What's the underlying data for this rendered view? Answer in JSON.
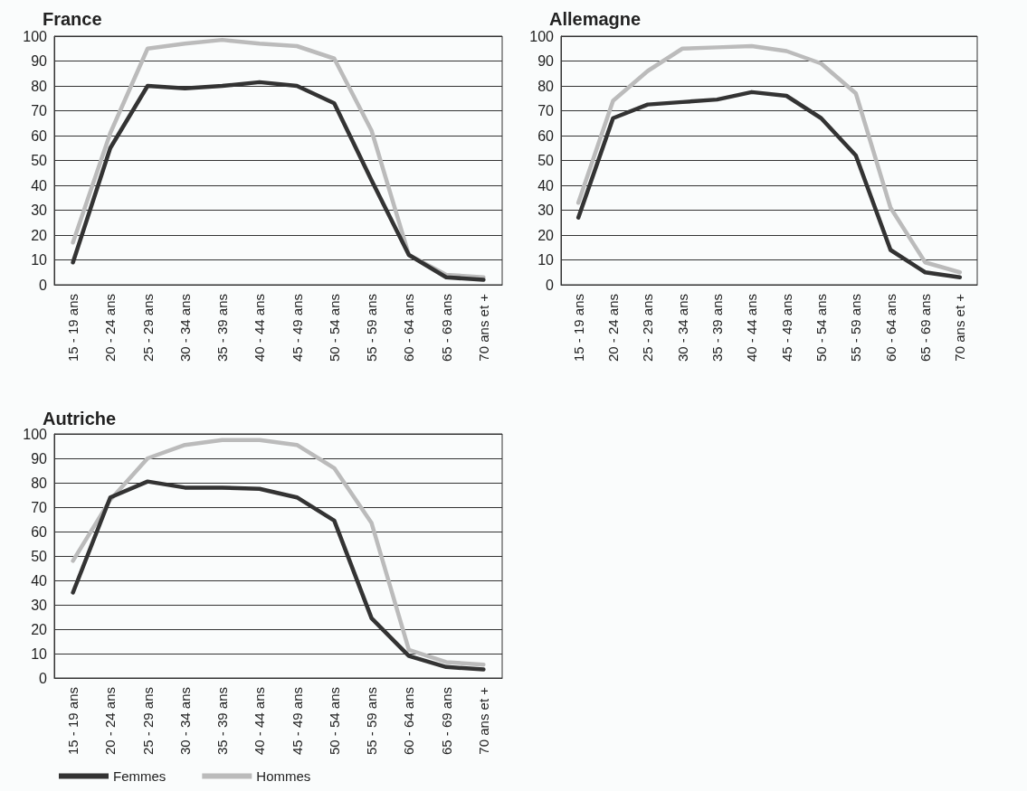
{
  "chart_data": [
    {
      "type": "line",
      "title": "France",
      "categories": [
        "15 - 19 ans",
        "20 - 24 ans",
        "25 - 29 ans",
        "30 - 34 ans",
        "35 - 39 ans",
        "40 - 44 ans",
        "45 - 49 ans",
        "50 - 54 ans",
        "55 - 59 ans",
        "60 - 64 ans",
        "65 - 69 ans",
        "70 ans et +"
      ],
      "ylim": [
        0,
        100
      ],
      "yticks": [
        0,
        10,
        20,
        30,
        40,
        50,
        60,
        70,
        80,
        90,
        100
      ],
      "grid": "y",
      "legend": false,
      "marker": "none",
      "series": [
        {
          "color": "#333333",
          "values": [
            9,
            55,
            80,
            79,
            80,
            81.5,
            80,
            73,
            42,
            12,
            3,
            2
          ]
        },
        {
          "color": "#bbbbbb",
          "values": [
            17,
            61,
            95,
            97,
            98.5,
            97,
            96,
            91,
            62,
            12,
            4,
            3
          ]
        }
      ]
    },
    {
      "type": "line",
      "title": "Allemagne",
      "categories": [
        "15 - 19 ans",
        "20 - 24 ans",
        "25 - 29 ans",
        "30 - 34 ans",
        "35 - 39 ans",
        "40 - 44 ans",
        "45 - 49 ans",
        "50 - 54 ans",
        "55 - 59 ans",
        "60 - 64 ans",
        "65 - 69 ans",
        "70 ans et +"
      ],
      "ylim": [
        0,
        100
      ],
      "yticks": [
        0,
        10,
        20,
        30,
        40,
        50,
        60,
        70,
        80,
        90,
        100
      ],
      "grid": "y",
      "legend": false,
      "marker": "none",
      "series": [
        {
          "color": "#333333",
          "values": [
            27,
            67,
            72.5,
            73.5,
            74.5,
            77.5,
            76,
            67,
            52,
            14,
            5,
            3
          ]
        },
        {
          "color": "#bbbbbb",
          "values": [
            33,
            74,
            86,
            95,
            95.5,
            96,
            94,
            89,
            77,
            31,
            9,
            5
          ]
        }
      ]
    },
    {
      "type": "line",
      "title": "Autriche",
      "categories": [
        "15 - 19 ans",
        "20 - 24 ans",
        "25 - 29 ans",
        "30 - 34 ans",
        "35 - 39 ans",
        "40 - 44 ans",
        "45 - 49 ans",
        "50 - 54 ans",
        "55 - 59 ans",
        "60 - 64 ans",
        "65 - 69 ans",
        "70 ans et +"
      ],
      "ylim": [
        0,
        100
      ],
      "yticks": [
        0,
        10,
        20,
        30,
        40,
        50,
        60,
        70,
        80,
        90,
        100
      ],
      "grid": "y",
      "legend": "bottom",
      "marker": "none",
      "series": [
        {
          "name": "Femmes",
          "color": "#333333",
          "values": [
            35,
            74,
            80.5,
            78,
            78,
            77.5,
            74,
            64.5,
            24.5,
            9,
            4.5,
            3.5
          ]
        },
        {
          "name": "Hommes",
          "color": "#bbbbbb",
          "values": [
            48,
            73,
            90,
            95.5,
            97.5,
            97.5,
            95.5,
            86,
            63.5,
            11.5,
            6.5,
            5.5
          ]
        }
      ]
    }
  ]
}
